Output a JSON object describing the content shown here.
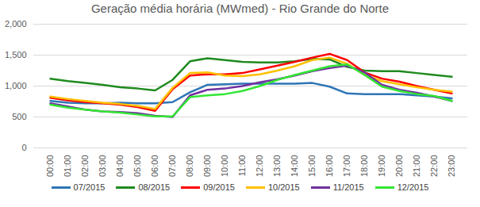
{
  "chart_data": {
    "type": "line",
    "title": "Geração média horária (MWmed) - Rio Grande do Norte",
    "categories": [
      "00:00",
      "01:00",
      "02:00",
      "03:00",
      "04:00",
      "05:00",
      "06:00",
      "07:00",
      "08:00",
      "09:00",
      "10:00",
      "11:00",
      "12:00",
      "13:00",
      "14:00",
      "15:00",
      "16:00",
      "17:00",
      "18:00",
      "19:00",
      "20:00",
      "21:00",
      "22:00",
      "23:00"
    ],
    "series": [
      {
        "name": "07/2015",
        "color": "#2e75b6",
        "values": [
          760,
          730,
          720,
          720,
          730,
          720,
          720,
          740,
          900,
          1020,
          1030,
          1040,
          1040,
          1040,
          1040,
          1050,
          990,
          880,
          870,
          870,
          870,
          850,
          830,
          800
        ]
      },
      {
        "name": "08/2015",
        "color": "#1f8a1f",
        "values": [
          1120,
          1080,
          1050,
          1020,
          980,
          960,
          930,
          1100,
          1400,
          1450,
          1420,
          1390,
          1380,
          1380,
          1400,
          1440,
          1430,
          1310,
          1250,
          1240,
          1240,
          1210,
          1180,
          1150
        ]
      },
      {
        "name": "09/2015",
        "color": "#ff0000",
        "values": [
          810,
          770,
          740,
          720,
          700,
          660,
          600,
          950,
          1170,
          1190,
          1190,
          1210,
          1270,
          1330,
          1390,
          1460,
          1520,
          1420,
          1220,
          1120,
          1070,
          1000,
          940,
          880
        ]
      },
      {
        "name": "10/2015",
        "color": "#ffc000",
        "values": [
          830,
          790,
          760,
          730,
          710,
          680,
          630,
          970,
          1210,
          1220,
          1170,
          1160,
          1190,
          1250,
          1320,
          1420,
          1460,
          1360,
          1180,
          1080,
          1030,
          980,
          940,
          910
        ]
      },
      {
        "name": "11/2015",
        "color": "#7030a0",
        "values": [
          720,
          670,
          620,
          590,
          580,
          560,
          520,
          500,
          850,
          940,
          960,
          1000,
          1060,
          1110,
          1170,
          1240,
          1290,
          1330,
          1220,
          1020,
          940,
          890,
          830,
          760
        ]
      },
      {
        "name": "12/2015",
        "color": "#33e633",
        "values": [
          700,
          650,
          620,
          590,
          570,
          540,
          510,
          510,
          820,
          850,
          870,
          920,
          1000,
          1100,
          1180,
          1250,
          1320,
          1350,
          1180,
          990,
          920,
          870,
          840,
          760
        ]
      }
    ],
    "ylim": [
      0,
      2000
    ],
    "yticks": [
      0,
      500,
      1000,
      1500,
      2000
    ],
    "grid": true,
    "legend": "bottom"
  }
}
